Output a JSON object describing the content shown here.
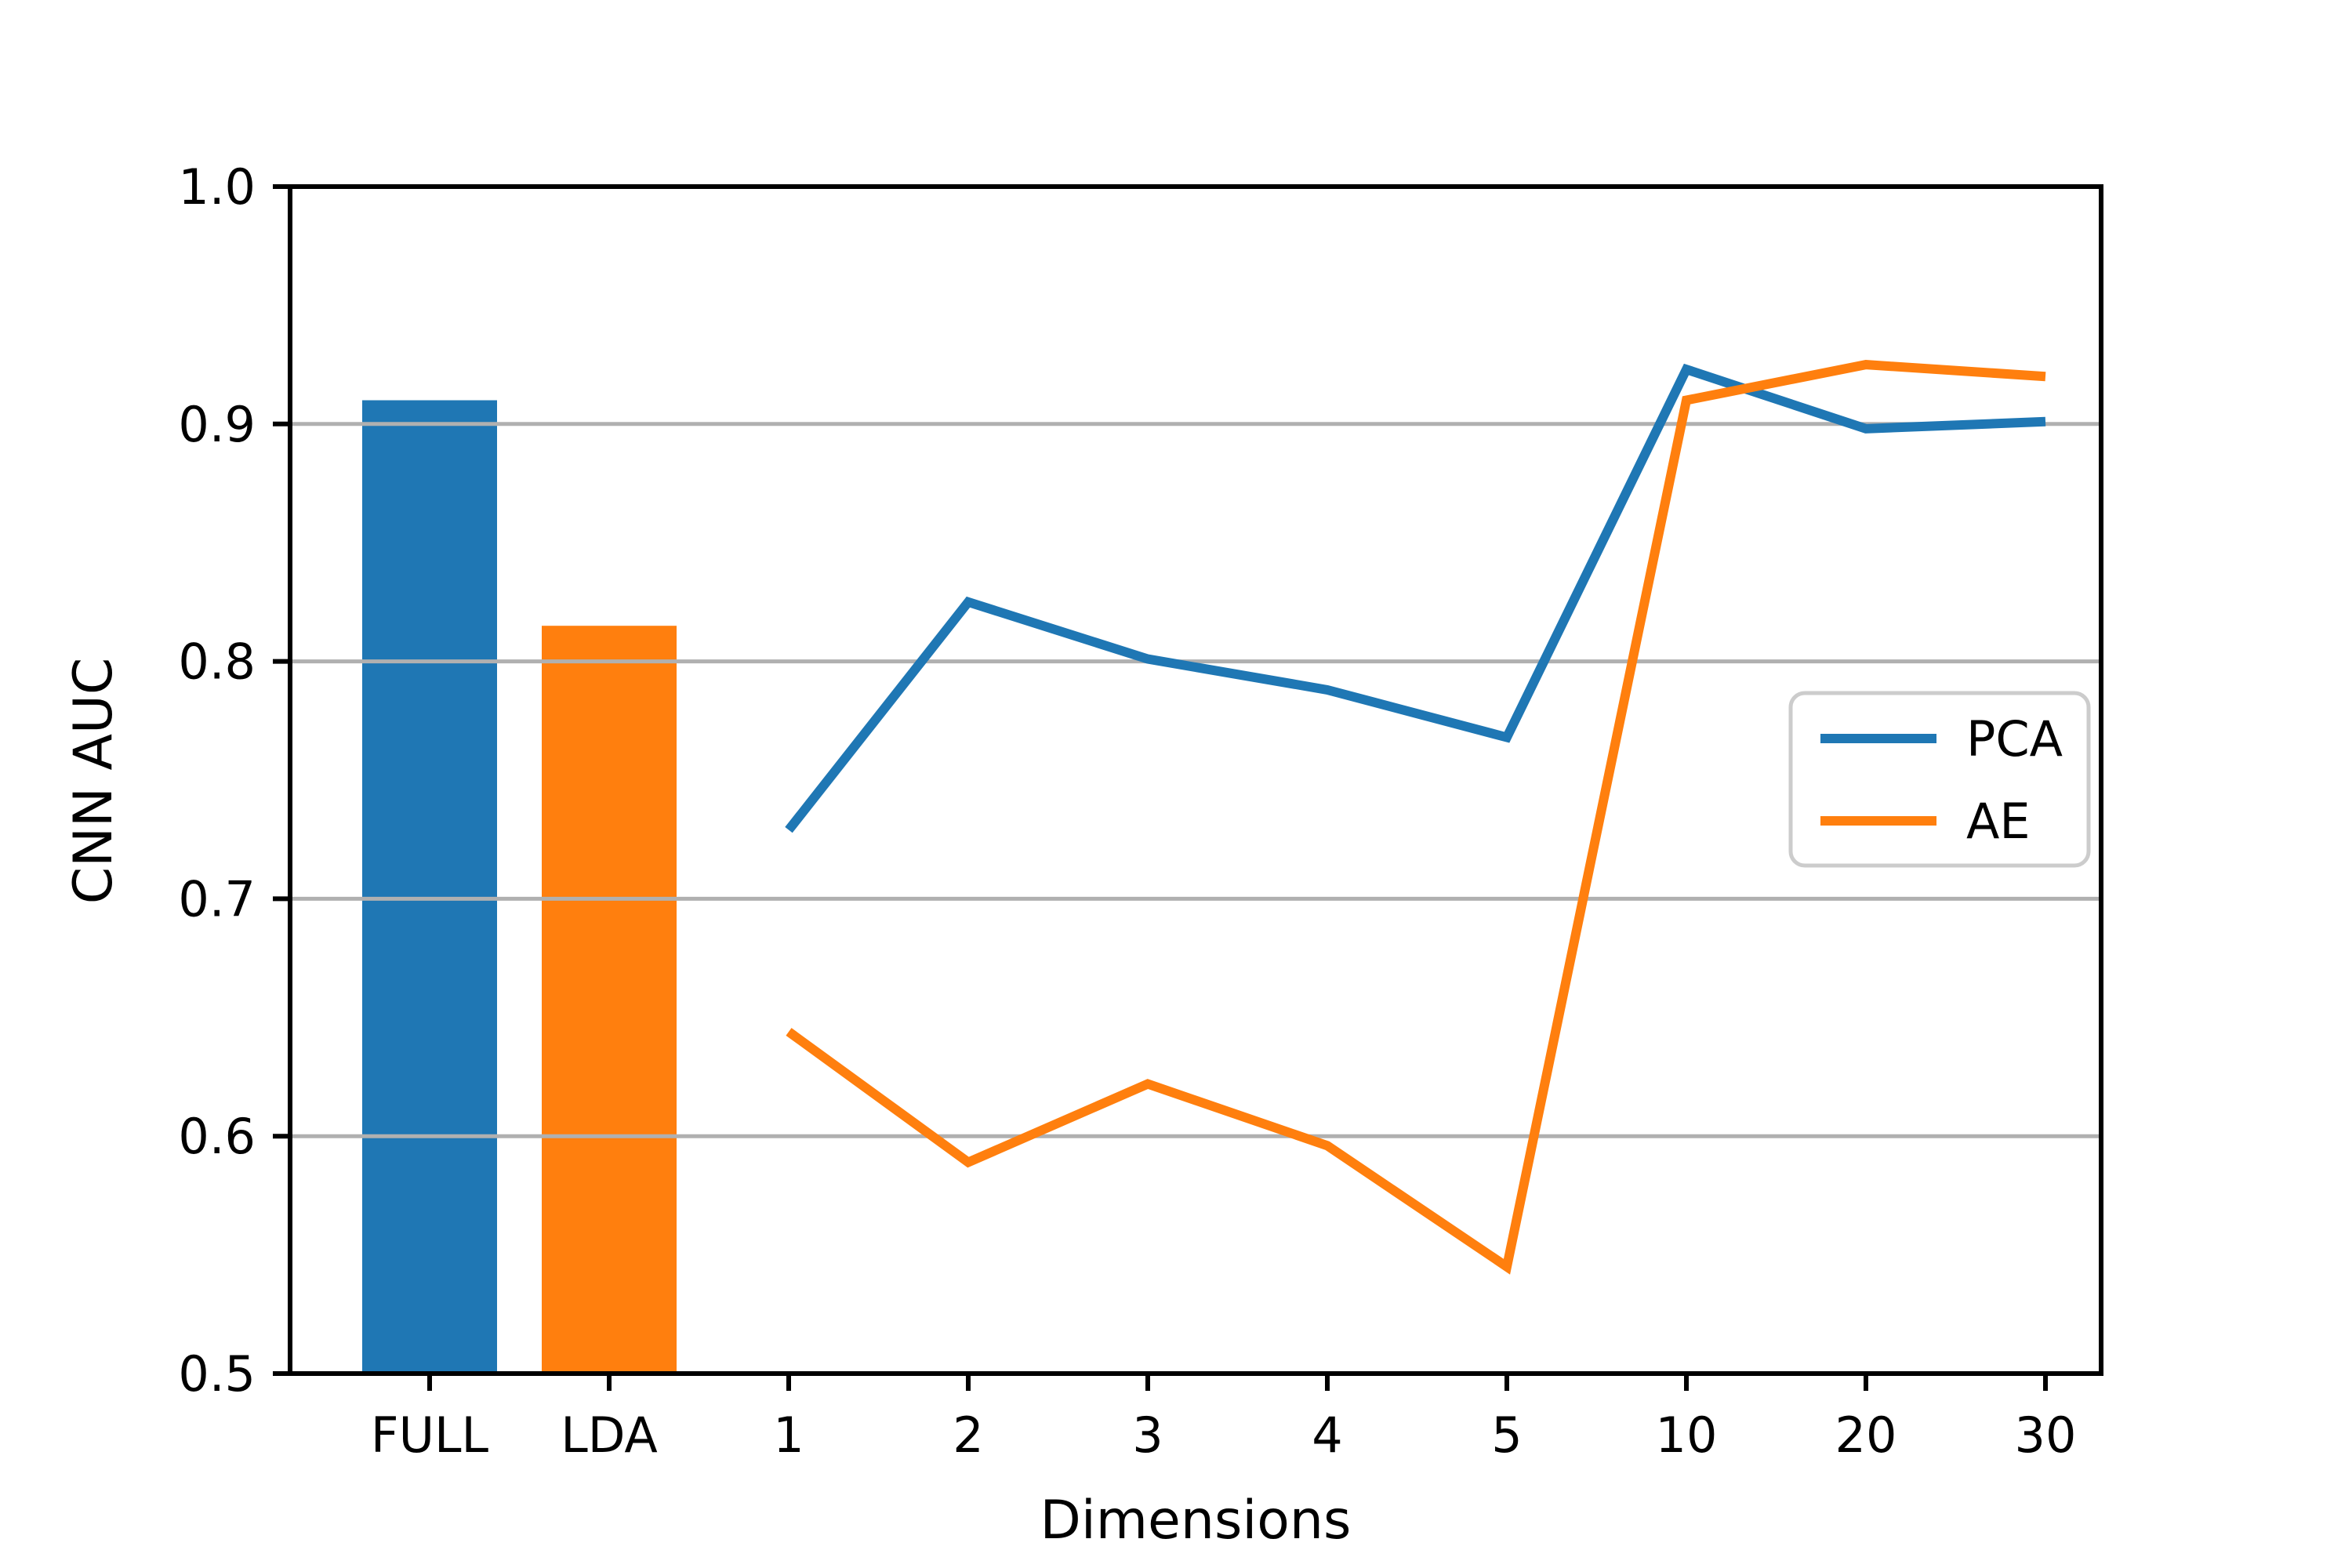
{
  "figure": {
    "background": "#ffffff"
  },
  "chart_data": {
    "type": [
      "bar",
      "line"
    ],
    "title": "",
    "xlabel": "Dimensions",
    "ylabel": "CNN AUC",
    "categories": [
      "FULL",
      "LDA",
      "1",
      "2",
      "3",
      "4",
      "5",
      "10",
      "20",
      "30"
    ],
    "ylim": [
      0.5,
      1.0
    ],
    "yticks": [
      0.5,
      0.6,
      0.7,
      0.8,
      0.9,
      1.0
    ],
    "ytick_labels": [
      "0.5",
      "0.6",
      "0.7",
      "0.8",
      "0.9",
      "1.0"
    ],
    "grid": "horizontal gridlines at interior yticks",
    "grid_color": "#b0b0b0",
    "spine_color": "#000000",
    "text_color": "#000000",
    "bars": [
      {
        "category": "FULL",
        "value": 0.91,
        "color": "#1f77b4"
      },
      {
        "category": "LDA",
        "value": 0.815,
        "color": "#ff7f0e"
      }
    ],
    "series": [
      {
        "name": "PCA",
        "color": "#1f77b4",
        "x": [
          "1",
          "2",
          "3",
          "4",
          "5",
          "10",
          "20",
          "30"
        ],
        "values": [
          0.729,
          0.825,
          0.801,
          0.788,
          0.768,
          0.923,
          0.898,
          0.901
        ]
      },
      {
        "name": "AE",
        "color": "#ff7f0e",
        "x": [
          "1",
          "2",
          "3",
          "4",
          "5",
          "10",
          "20",
          "30"
        ],
        "values": [
          0.644,
          0.589,
          0.622,
          0.596,
          0.545,
          0.91,
          0.925,
          0.92
        ]
      }
    ],
    "legend": {
      "entries": [
        "PCA",
        "AE"
      ],
      "position": "right-middle",
      "border_color": "#cccccc",
      "background": "#ffffff"
    }
  }
}
